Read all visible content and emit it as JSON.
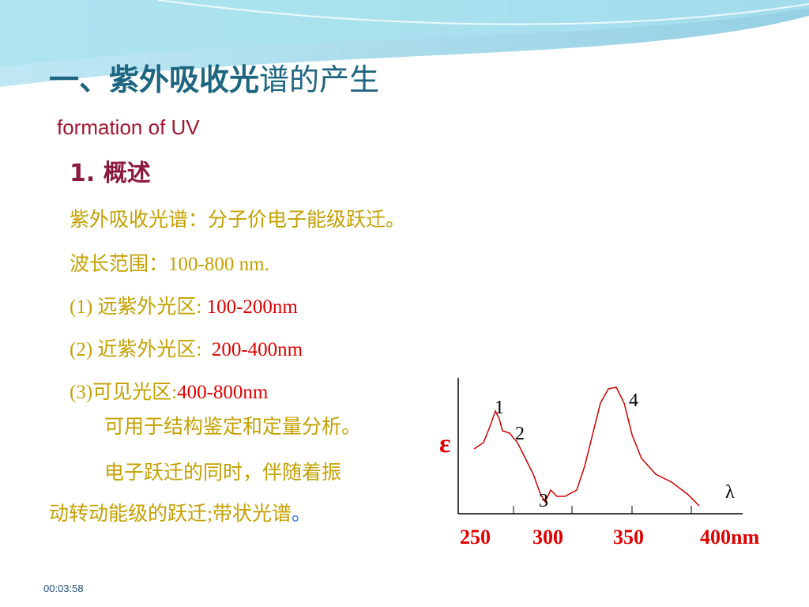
{
  "title": {
    "bold": "一、紫外吸收光",
    "rest": "谱的产生"
  },
  "subtitle": "formation of UV",
  "section": "1. 概述",
  "lines": [
    [
      {
        "text": "紫外吸收光谱：分子价电子能级跃迁。",
        "tone": "gold"
      }
    ],
    [
      {
        "text": "波长范围：100-800 nm.",
        "tone": "gold"
      }
    ],
    [
      {
        "text": "(1) 远紫外光区: ",
        "tone": "gold"
      },
      {
        "text": "100-200nm",
        "tone": "red"
      }
    ],
    [
      {
        "text": "(2) 近紫外光区:  ",
        "tone": "gold"
      },
      {
        "text": "200-400nm",
        "tone": "red"
      }
    ],
    [
      {
        "text": "(3)可见光区:",
        "tone": "gold"
      },
      {
        "text": "400-800nm",
        "tone": "red"
      }
    ],
    [
      {
        "text": "可用于结构鉴定和定量分析。",
        "tone": "gold"
      }
    ],
    [
      {
        "text": "电子跃迁的同时，伴随着振",
        "tone": "gold"
      }
    ],
    [
      {
        "text": "动转动能级的跃迁;带状光谱",
        "tone": "gold"
      },
      {
        "text": "。",
        "tone": "blue"
      }
    ]
  ],
  "figure": {
    "y_label": "ε",
    "x_label": "λ",
    "peak_labels": [
      "1",
      "2",
      "3",
      "4"
    ],
    "x_tick_labels": [
      "250",
      "300",
      "350",
      "400nm"
    ]
  },
  "timestamp": "00:03:58"
}
